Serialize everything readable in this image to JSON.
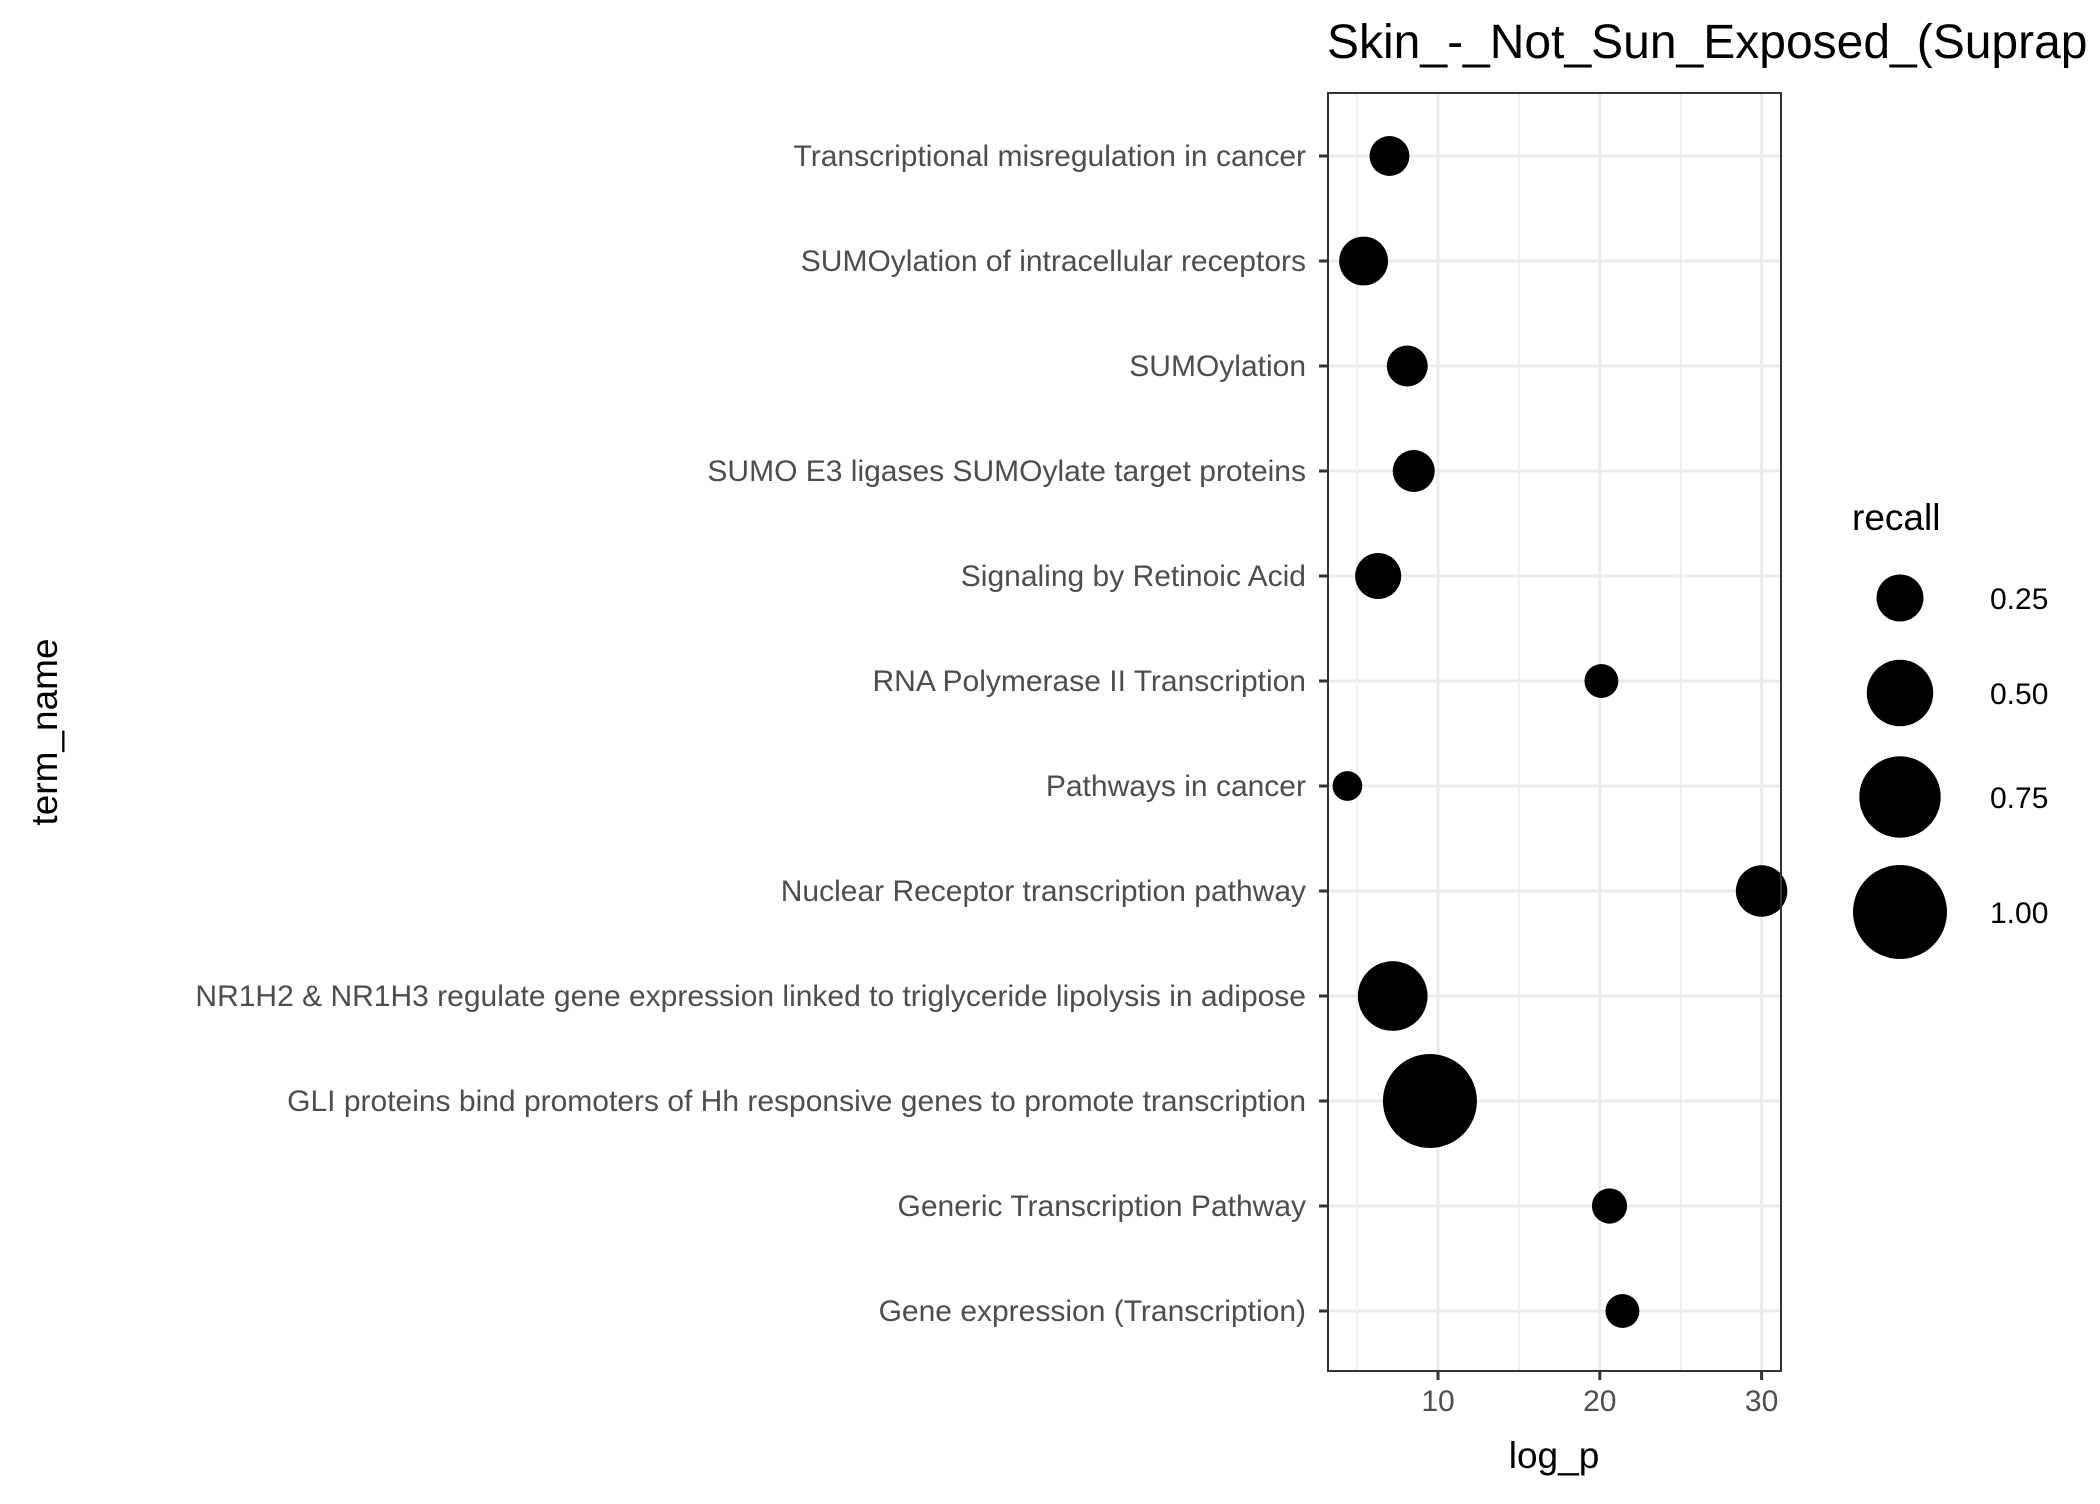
{
  "chart_data": {
    "type": "scatter",
    "title": "Skin_-_Not_Sun_Exposed_(Suprap",
    "xlabel": "log_p",
    "ylabel": "term_name",
    "xlim": [
      3.2,
      31.2
    ],
    "xticks": [
      10,
      20,
      30
    ],
    "grid": true,
    "legend_placement": "right",
    "size_legend": {
      "title": "recall",
      "breaks": [
        0.25,
        0.5,
        0.75,
        1.0
      ],
      "labels": [
        "0.25",
        "0.50",
        "0.75",
        "1.00"
      ]
    },
    "categories": [
      "Transcriptional misregulation in cancer",
      "SUMOylation of intracellular receptors",
      "SUMOylation",
      "SUMO E3 ligases SUMOylate target proteins",
      "Signaling by Retinoic Acid",
      "RNA Polymerase II Transcription",
      "Pathways in cancer",
      "Nuclear Receptor transcription pathway",
      "NR1H2 & NR1H3 regulate gene expression linked to triglyceride lipolysis in adipose",
      "GLI proteins bind promoters of Hh responsive genes to promote transcription",
      "Generic Transcription Pathway",
      "Gene expression (Transcription)"
    ],
    "points": [
      {
        "term": "Transcriptional misregulation in cancer",
        "log_p": 7.0,
        "recall": 0.18
      },
      {
        "term": "SUMOylation of intracellular receptors",
        "log_p": 5.4,
        "recall": 0.27
      },
      {
        "term": "SUMOylation",
        "log_p": 8.1,
        "recall": 0.19
      },
      {
        "term": "SUMO E3 ligases SUMOylate target proteins",
        "log_p": 8.5,
        "recall": 0.2
      },
      {
        "term": "Signaling by Retinoic Acid",
        "log_p": 6.3,
        "recall": 0.24
      },
      {
        "term": "RNA Polymerase II Transcription",
        "log_p": 20.1,
        "recall": 0.13
      },
      {
        "term": "Pathways in cancer",
        "log_p": 4.4,
        "recall": 0.1
      },
      {
        "term": "Nuclear Receptor transcription pathway",
        "log_p": 30.0,
        "recall": 0.3
      },
      {
        "term": "NR1H2 & NR1H3 regulate gene expression linked to triglyceride lipolysis in adipose",
        "log_p": 7.2,
        "recall": 0.55
      },
      {
        "term": "GLI proteins bind promoters of Hh responsive genes to promote transcription",
        "log_p": 9.5,
        "recall": 1.0
      },
      {
        "term": "Generic Transcription Pathway",
        "log_p": 20.6,
        "recall": 0.14
      },
      {
        "term": "Gene expression (Transcription)",
        "log_p": 21.4,
        "recall": 0.13
      }
    ],
    "colors": {
      "point": "#000000",
      "grid": "#ebebeb",
      "panel_border": "#333333",
      "axis_text": "#4d4d4d"
    }
  }
}
